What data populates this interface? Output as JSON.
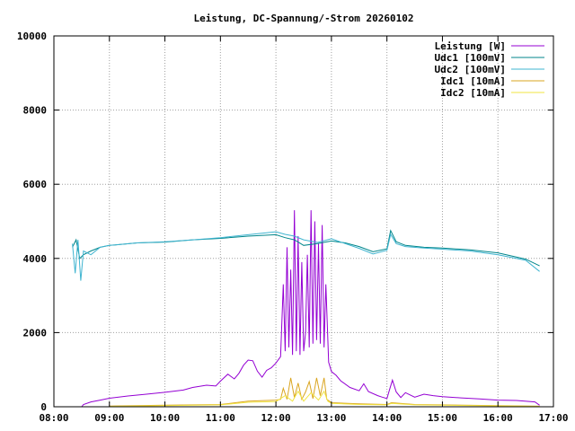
{
  "chart_data": {
    "type": "line",
    "title": "Leistung, DC-Spannung/-Strom 20260102",
    "xlabel": "",
    "ylabel": "",
    "xlim": [
      "08:00",
      "17:00"
    ],
    "ylim": [
      0,
      10000
    ],
    "x_ticks": [
      "08:00",
      "09:00",
      "10:00",
      "11:00",
      "12:00",
      "13:00",
      "14:00",
      "15:00",
      "16:00",
      "17:00"
    ],
    "y_ticks": [
      "0",
      "2000",
      "4000",
      "6000",
      "8000",
      "10000"
    ],
    "grid": true,
    "legend_position": "top-right",
    "series": [
      {
        "name": "Leistung [W]",
        "color": "#9400d3",
        "points": [
          [
            "08:30",
            0
          ],
          [
            "08:32",
            60
          ],
          [
            "08:40",
            130
          ],
          [
            "08:50",
            180
          ],
          [
            "09:00",
            230
          ],
          [
            "09:20",
            290
          ],
          [
            "09:40",
            340
          ],
          [
            "10:00",
            390
          ],
          [
            "10:20",
            450
          ],
          [
            "10:30",
            520
          ],
          [
            "10:45",
            580
          ],
          [
            "10:55",
            560
          ],
          [
            "11:00",
            690
          ],
          [
            "11:08",
            880
          ],
          [
            "11:15",
            750
          ],
          [
            "11:20",
            900
          ],
          [
            "11:25",
            1120
          ],
          [
            "11:30",
            1260
          ],
          [
            "11:35",
            1240
          ],
          [
            "11:40",
            960
          ],
          [
            "11:45",
            800
          ],
          [
            "11:50",
            980
          ],
          [
            "11:55",
            1050
          ],
          [
            "12:00",
            1180
          ],
          [
            "12:05",
            1350
          ],
          [
            "12:08",
            3300
          ],
          [
            "12:10",
            1500
          ],
          [
            "12:12",
            4300
          ],
          [
            "12:14",
            1600
          ],
          [
            "12:16",
            3700
          ],
          [
            "12:18",
            1400
          ],
          [
            "12:20",
            5300
          ],
          [
            "12:22",
            1500
          ],
          [
            "12:24",
            4600
          ],
          [
            "12:26",
            1400
          ],
          [
            "12:28",
            3900
          ],
          [
            "12:30",
            1500
          ],
          [
            "12:32",
            2000
          ],
          [
            "12:34",
            4100
          ],
          [
            "12:36",
            1600
          ],
          [
            "12:38",
            5300
          ],
          [
            "12:40",
            1700
          ],
          [
            "12:42",
            5000
          ],
          [
            "12:44",
            1800
          ],
          [
            "12:46",
            4400
          ],
          [
            "12:48",
            1700
          ],
          [
            "12:50",
            4900
          ],
          [
            "12:52",
            1600
          ],
          [
            "12:54",
            3300
          ],
          [
            "12:57",
            1200
          ],
          [
            "13:00",
            950
          ],
          [
            "13:05",
            850
          ],
          [
            "13:10",
            700
          ],
          [
            "13:20",
            520
          ],
          [
            "13:30",
            430
          ],
          [
            "13:35",
            620
          ],
          [
            "13:40",
            410
          ],
          [
            "13:50",
            300
          ],
          [
            "13:55",
            260
          ],
          [
            "14:00",
            220
          ],
          [
            "14:03",
            480
          ],
          [
            "14:06",
            720
          ],
          [
            "14:10",
            400
          ],
          [
            "14:15",
            250
          ],
          [
            "14:20",
            380
          ],
          [
            "14:30",
            260
          ],
          [
            "14:40",
            340
          ],
          [
            "14:50",
            300
          ],
          [
            "15:00",
            270
          ],
          [
            "15:20",
            240
          ],
          [
            "15:40",
            210
          ],
          [
            "16:00",
            180
          ],
          [
            "16:20",
            170
          ],
          [
            "16:40",
            130
          ],
          [
            "16:45",
            40
          ]
        ]
      },
      {
        "name": "Udc1 [100mV]",
        "color": "#00868b",
        "points": [
          [
            "08:20",
            4300
          ],
          [
            "08:24",
            4500
          ],
          [
            "08:28",
            4000
          ],
          [
            "08:32",
            4100
          ],
          [
            "08:40",
            4200
          ],
          [
            "08:50",
            4300
          ],
          [
            "09:00",
            4350
          ],
          [
            "09:30",
            4420
          ],
          [
            "10:00",
            4440
          ],
          [
            "10:30",
            4500
          ],
          [
            "11:00",
            4540
          ],
          [
            "11:30",
            4600
          ],
          [
            "12:00",
            4640
          ],
          [
            "12:10",
            4560
          ],
          [
            "12:20",
            4500
          ],
          [
            "12:30",
            4350
          ],
          [
            "12:45",
            4400
          ],
          [
            "13:00",
            4470
          ],
          [
            "13:15",
            4420
          ],
          [
            "13:30",
            4320
          ],
          [
            "13:45",
            4180
          ],
          [
            "14:00",
            4260
          ],
          [
            "14:04",
            4750
          ],
          [
            "14:10",
            4450
          ],
          [
            "14:20",
            4350
          ],
          [
            "14:40",
            4300
          ],
          [
            "15:00",
            4280
          ],
          [
            "15:30",
            4230
          ],
          [
            "16:00",
            4150
          ],
          [
            "16:30",
            3980
          ],
          [
            "16:45",
            3800
          ]
        ]
      },
      {
        "name": "Udc2 [100mV]",
        "color": "#3fb4d0",
        "points": [
          [
            "08:20",
            4400
          ],
          [
            "08:23",
            3600
          ],
          [
            "08:26",
            4500
          ],
          [
            "08:29",
            3400
          ],
          [
            "08:32",
            4200
          ],
          [
            "08:40",
            4100
          ],
          [
            "08:50",
            4300
          ],
          [
            "09:00",
            4350
          ],
          [
            "09:30",
            4420
          ],
          [
            "10:00",
            4450
          ],
          [
            "10:30",
            4500
          ],
          [
            "11:00",
            4560
          ],
          [
            "11:30",
            4640
          ],
          [
            "12:00",
            4720
          ],
          [
            "12:10",
            4650
          ],
          [
            "12:20",
            4600
          ],
          [
            "12:30",
            4500
          ],
          [
            "12:45",
            4430
          ],
          [
            "13:00",
            4530
          ],
          [
            "13:15",
            4400
          ],
          [
            "13:30",
            4270
          ],
          [
            "13:45",
            4120
          ],
          [
            "14:00",
            4220
          ],
          [
            "14:04",
            4650
          ],
          [
            "14:10",
            4400
          ],
          [
            "14:20",
            4320
          ],
          [
            "14:40",
            4280
          ],
          [
            "15:00",
            4250
          ],
          [
            "15:30",
            4200
          ],
          [
            "16:00",
            4100
          ],
          [
            "16:30",
            3950
          ],
          [
            "16:45",
            3650
          ]
        ]
      },
      {
        "name": "Idc1 [10mA]",
        "color": "#daa520",
        "points": [
          [
            "09:00",
            20
          ],
          [
            "10:00",
            40
          ],
          [
            "11:00",
            60
          ],
          [
            "11:30",
            150
          ],
          [
            "12:00",
            180
          ],
          [
            "12:05",
            200
          ],
          [
            "12:08",
            500
          ],
          [
            "12:12",
            200
          ],
          [
            "12:16",
            780
          ],
          [
            "12:20",
            250
          ],
          [
            "12:24",
            640
          ],
          [
            "12:28",
            200
          ],
          [
            "12:32",
            400
          ],
          [
            "12:36",
            680
          ],
          [
            "12:40",
            220
          ],
          [
            "12:44",
            780
          ],
          [
            "12:48",
            300
          ],
          [
            "12:52",
            780
          ],
          [
            "12:55",
            200
          ],
          [
            "13:00",
            110
          ],
          [
            "13:30",
            80
          ],
          [
            "14:00",
            60
          ],
          [
            "14:05",
            110
          ],
          [
            "14:30",
            60
          ],
          [
            "15:00",
            50
          ],
          [
            "16:00",
            30
          ],
          [
            "16:45",
            15
          ]
        ]
      },
      {
        "name": "Idc2 [10mA]",
        "color": "#f0e442",
        "points": [
          [
            "09:00",
            10
          ],
          [
            "10:00",
            30
          ],
          [
            "11:00",
            50
          ],
          [
            "11:30",
            120
          ],
          [
            "12:00",
            140
          ],
          [
            "12:10",
            300
          ],
          [
            "12:18",
            150
          ],
          [
            "12:24",
            420
          ],
          [
            "12:30",
            150
          ],
          [
            "12:38",
            380
          ],
          [
            "12:46",
            180
          ],
          [
            "12:52",
            420
          ],
          [
            "12:56",
            150
          ],
          [
            "13:00",
            90
          ],
          [
            "13:30",
            60
          ],
          [
            "14:00",
            50
          ],
          [
            "14:05",
            90
          ],
          [
            "14:30",
            50
          ],
          [
            "15:00",
            40
          ],
          [
            "16:00",
            25
          ],
          [
            "16:45",
            10
          ]
        ]
      }
    ]
  }
}
